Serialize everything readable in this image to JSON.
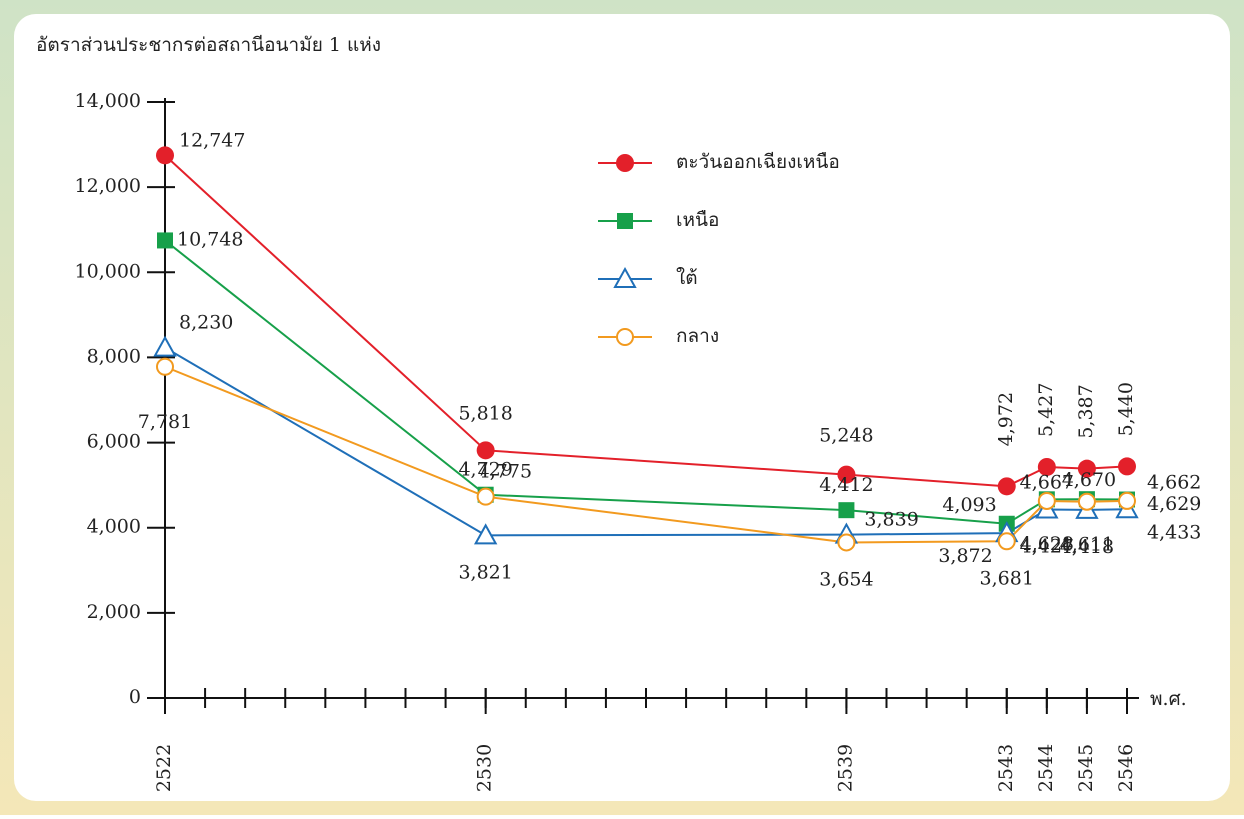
{
  "chart_data": {
    "type": "line",
    "title": "อัตราส่วนประชากรต่อสถานีอนามัย 1 แห่ง",
    "x_label": "พ.ศ.",
    "x": [
      2522,
      2530,
      2539,
      2543,
      2544,
      2545,
      2546
    ],
    "xlim": [
      2522,
      2546
    ],
    "xticks": [
      2522,
      2530,
      2539,
      2543,
      2544,
      2545,
      2546
    ],
    "ylim": [
      0,
      14000
    ],
    "yticks": [
      0,
      {
        "value": 2000,
        "label": "2,000"
      },
      {
        "value": 4000,
        "label": "4,000"
      },
      {
        "value": 6000,
        "label": "6,000"
      },
      {
        "value": 8000,
        "label": "8,000"
      },
      {
        "value": 10000,
        "label": "10,000"
      },
      {
        "value": 12000,
        "label": "12,000"
      },
      {
        "value": 14000,
        "label": "14,000"
      }
    ],
    "legend": "upper right",
    "series": [
      {
        "name": "ตะวันออกเฉียงเหนือ",
        "color": "#e3202a",
        "marker": "filled-circle",
        "values": [
          12747,
          5818,
          5248,
          4972,
          5427,
          5387,
          5440
        ],
        "value_labels": [
          "12,747",
          "5,818",
          "5,248",
          "4,972",
          "5,427",
          "5,387",
          "5,440"
        ]
      },
      {
        "name": "เหนือ",
        "color": "#17a04a",
        "marker": "filled-square",
        "values": [
          10748,
          4775,
          4412,
          4093,
          4667,
          4670,
          4662
        ],
        "value_labels": [
          "10,748",
          "4,775",
          "4,412",
          "4,093",
          "4,667",
          "4,670",
          "4,662"
        ]
      },
      {
        "name": "ใต้",
        "color": "#1f6fb8",
        "marker": "hollow-triangle",
        "values": [
          8230,
          3821,
          3839,
          3872,
          4427,
          4418,
          4433
        ],
        "value_labels": [
          "8,230",
          "3,821",
          "3,839",
          "3,872",
          "4,427",
          "4,418",
          "4,433"
        ]
      },
      {
        "name": "กลาง",
        "color": "#f29a1f",
        "marker": "hollow-circle",
        "values": [
          7781,
          4729,
          3654,
          3681,
          4628,
          4611,
          4629
        ],
        "value_labels": [
          "7,781",
          "4,729",
          "3,654",
          "3,681",
          "4,628",
          "4,611",
          "4,629"
        ]
      }
    ]
  }
}
